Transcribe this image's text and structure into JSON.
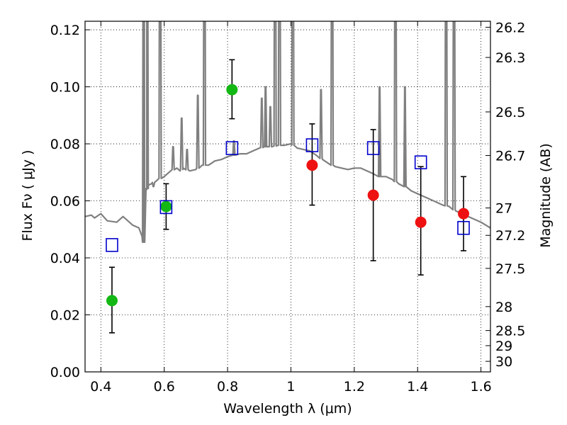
{
  "chart_data": {
    "type": "scatter",
    "xlabel": "Wavelength  λ (μm)",
    "ylabel": "Flux  Fν  ( μJy )",
    "y2label": "Magnitude (AB)",
    "xlim": [
      0.35,
      1.63
    ],
    "ylim": [
      0.0,
      0.123
    ],
    "grid": true,
    "x_ticks": [
      0.4,
      0.6,
      0.8,
      1.0,
      1.2,
      1.4,
      1.6
    ],
    "x_tick_labels": [
      "0.4",
      "0.6",
      "0.8",
      "1",
      "1.2",
      "1.4",
      "1.6"
    ],
    "y_ticks": [
      0.0,
      0.02,
      0.04,
      0.06,
      0.08,
      0.1,
      0.12
    ],
    "y_tick_labels": [
      "0.00",
      "0.02",
      "0.04",
      "0.06",
      "0.08",
      "0.10",
      "0.12"
    ],
    "y2_ticks": [
      {
        "flux": 0.1209,
        "label": "26.2"
      },
      {
        "flux": 0.1103,
        "label": "26.3"
      },
      {
        "flux": 0.0912,
        "label": "26.5"
      },
      {
        "flux": 0.0759,
        "label": "26.7"
      },
      {
        "flux": 0.0575,
        "label": "27"
      },
      {
        "flux": 0.0479,
        "label": "27.2"
      },
      {
        "flux": 0.0363,
        "label": "27.5"
      },
      {
        "flux": 0.0229,
        "label": "28"
      },
      {
        "flux": 0.0145,
        "label": "28.5"
      },
      {
        "flux": 0.0092,
        "label": "29"
      },
      {
        "flux": 0.0037,
        "label": "30"
      }
    ],
    "colors": {
      "spectrum": "#808080",
      "green": "#14b814",
      "red": "#ee1111",
      "model_box": "#0000cc",
      "errorbar": "#000000",
      "grid": "#000000"
    },
    "series": [
      {
        "marker": "circle",
        "color": "green",
        "points": [
          {
            "x": 0.435,
            "y": 0.025,
            "err_lo": 0.0113,
            "err_hi": 0.0117
          },
          {
            "x": 0.606,
            "y": 0.058,
            "err_lo": 0.008,
            "err_hi": 0.008
          },
          {
            "x": 0.814,
            "y": 0.099,
            "err_lo": 0.0102,
            "err_hi": 0.0105
          }
        ]
      },
      {
        "marker": "circle",
        "color": "red",
        "points": [
          {
            "x": 1.067,
            "y": 0.0725,
            "err_lo": 0.014,
            "err_hi": 0.0145
          },
          {
            "x": 1.26,
            "y": 0.062,
            "err_lo": 0.023,
            "err_hi": 0.023
          },
          {
            "x": 1.41,
            "y": 0.0525,
            "err_lo": 0.0185,
            "err_hi": 0.0195
          },
          {
            "x": 1.545,
            "y": 0.0555,
            "err_lo": 0.013,
            "err_hi": 0.013
          }
        ]
      },
      {
        "marker": "open-square",
        "color": "model_box",
        "points": [
          {
            "x": 0.435,
            "y": 0.0445
          },
          {
            "x": 0.606,
            "y": 0.0578
          },
          {
            "x": 0.814,
            "y": 0.0785
          },
          {
            "x": 1.067,
            "y": 0.0795
          },
          {
            "x": 1.26,
            "y": 0.0785
          },
          {
            "x": 1.41,
            "y": 0.0735
          },
          {
            "x": 1.545,
            "y": 0.0505
          }
        ]
      }
    ],
    "spectrum": {
      "x": [
        0.35,
        0.37,
        0.38,
        0.4,
        0.42,
        0.45,
        0.47,
        0.5,
        0.52,
        0.53,
        0.535,
        0.545,
        0.55,
        0.56,
        0.58,
        0.6,
        0.62,
        0.64,
        0.65,
        0.66,
        0.68,
        0.7,
        0.72,
        0.74,
        0.76,
        0.78,
        0.8,
        0.82,
        0.84,
        0.86,
        0.88,
        0.9,
        0.92,
        0.94,
        0.96,
        0.98,
        1.0,
        1.02,
        1.04,
        1.06,
        1.08,
        1.1,
        1.12,
        1.14,
        1.16,
        1.18,
        1.2,
        1.22,
        1.24,
        1.26,
        1.28,
        1.3,
        1.32,
        1.34,
        1.36,
        1.38,
        1.4,
        1.42,
        1.44,
        1.46,
        1.48,
        1.5,
        1.52,
        1.54,
        1.56,
        1.58,
        1.6,
        1.63
      ],
      "y": [
        0.0545,
        0.055,
        0.054,
        0.0555,
        0.053,
        0.0525,
        0.0545,
        0.0515,
        0.0505,
        0.0475,
        0.0455,
        0.064,
        0.0655,
        0.066,
        0.0675,
        0.0685,
        0.0705,
        0.0715,
        0.0705,
        0.0715,
        0.0705,
        0.071,
        0.0725,
        0.0725,
        0.074,
        0.0745,
        0.0755,
        0.076,
        0.0765,
        0.0765,
        0.0775,
        0.0785,
        0.079,
        0.079,
        0.0795,
        0.0795,
        0.08,
        0.0785,
        0.078,
        0.0775,
        0.076,
        0.0745,
        0.073,
        0.072,
        0.0715,
        0.071,
        0.0715,
        0.0715,
        0.0705,
        0.0695,
        0.0685,
        0.0685,
        0.0675,
        0.066,
        0.065,
        0.0635,
        0.0625,
        0.0615,
        0.0605,
        0.0595,
        0.0585,
        0.058,
        0.0565,
        0.0555,
        0.0545,
        0.0535,
        0.0525,
        0.0505
      ]
    },
    "spectrum_lines": [
      {
        "x": 0.535,
        "peak": 0.2
      },
      {
        "x": 0.546,
        "peak": 0.2
      },
      {
        "x": 0.566,
        "peak": 0.065
      },
      {
        "x": 0.587,
        "peak": 0.2
      },
      {
        "x": 0.628,
        "peak": 0.079
      },
      {
        "x": 0.655,
        "peak": 0.089
      },
      {
        "x": 0.672,
        "peak": 0.078
      },
      {
        "x": 0.706,
        "peak": 0.097
      },
      {
        "x": 0.727,
        "peak": 0.2
      },
      {
        "x": 0.82,
        "peak": 0.081
      },
      {
        "x": 0.908,
        "peak": 0.096
      },
      {
        "x": 0.92,
        "peak": 0.1
      },
      {
        "x": 0.935,
        "peak": 0.093
      },
      {
        "x": 0.95,
        "peak": 0.2
      },
      {
        "x": 0.964,
        "peak": 0.2
      },
      {
        "x": 1.006,
        "peak": 0.2
      },
      {
        "x": 1.095,
        "peak": 0.099
      },
      {
        "x": 1.13,
        "peak": 0.2
      },
      {
        "x": 1.28,
        "peak": 0.1
      },
      {
        "x": 1.33,
        "peak": 0.2
      },
      {
        "x": 1.36,
        "peak": 0.1
      },
      {
        "x": 1.49,
        "peak": 0.2
      },
      {
        "x": 1.515,
        "peak": 0.2
      }
    ]
  }
}
